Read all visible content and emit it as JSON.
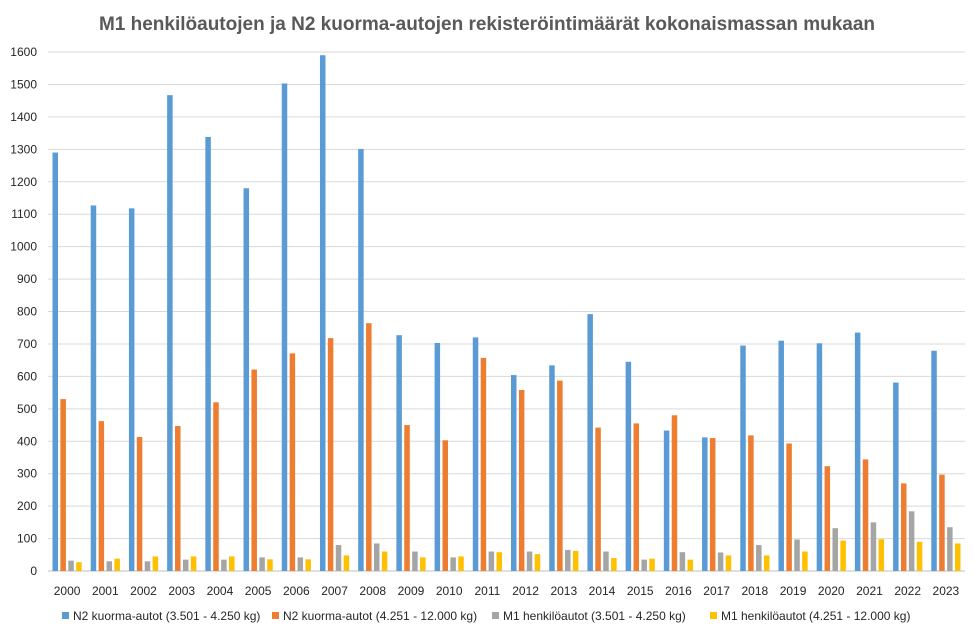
{
  "chart_data": {
    "type": "bar",
    "title": "M1 henkilöautojen  ja N2 kuorma-autojen  rekisteröintimäärät  kokonaismassan  mukaan",
    "xlabel": "",
    "ylabel": "",
    "ylim": [
      0,
      1600
    ],
    "yticks": [
      0,
      100,
      200,
      300,
      400,
      500,
      600,
      700,
      800,
      900,
      1000,
      1100,
      1200,
      1300,
      1400,
      1500,
      1600
    ],
    "grid": true,
    "legend_position": "bottom",
    "categories": [
      "2000",
      "2001",
      "2002",
      "2003",
      "2004",
      "2005",
      "2006",
      "2007",
      "2008",
      "2009",
      "2010",
      "2011",
      "2012",
      "2013",
      "2014",
      "2015",
      "2016",
      "2017",
      "2018",
      "2019",
      "2020",
      "2021",
      "2022",
      "2023"
    ],
    "series": [
      {
        "name": "N2 kuorma-autot (3.501 - 4.250 kg)",
        "color": "#5b9bd5",
        "values": [
          1290,
          1127,
          1118,
          1467,
          1338,
          1180,
          1503,
          1590,
          1301,
          727,
          703,
          720,
          604,
          634,
          792,
          645,
          433,
          412,
          695,
          710,
          702,
          735,
          581,
          679
        ]
      },
      {
        "name": "N2 kuorma-autot (4.251 - 12.000 kg)",
        "color": "#ed7d31",
        "values": [
          530,
          462,
          413,
          447,
          520,
          621,
          671,
          718,
          764,
          450,
          403,
          657,
          558,
          587,
          442,
          455,
          480,
          410,
          418,
          393,
          323,
          344,
          270,
          297
        ]
      },
      {
        "name": "M1 henkilöautot (3.501 - 4.250 kg)",
        "color": "#a5a5a5",
        "values": [
          32,
          30,
          30,
          35,
          35,
          42,
          42,
          80,
          85,
          60,
          42,
          60,
          60,
          65,
          60,
          35,
          58,
          57,
          80,
          97,
          132,
          150,
          184,
          135
        ]
      },
      {
        "name": "M1 henkilöautot (4.251 - 12.000 kg)",
        "color": "#ffc000",
        "values": [
          27,
          38,
          45,
          45,
          45,
          36,
          36,
          48,
          60,
          42,
          45,
          58,
          52,
          62,
          40,
          38,
          35,
          48,
          48,
          60,
          94,
          98,
          90,
          85
        ]
      }
    ]
  }
}
